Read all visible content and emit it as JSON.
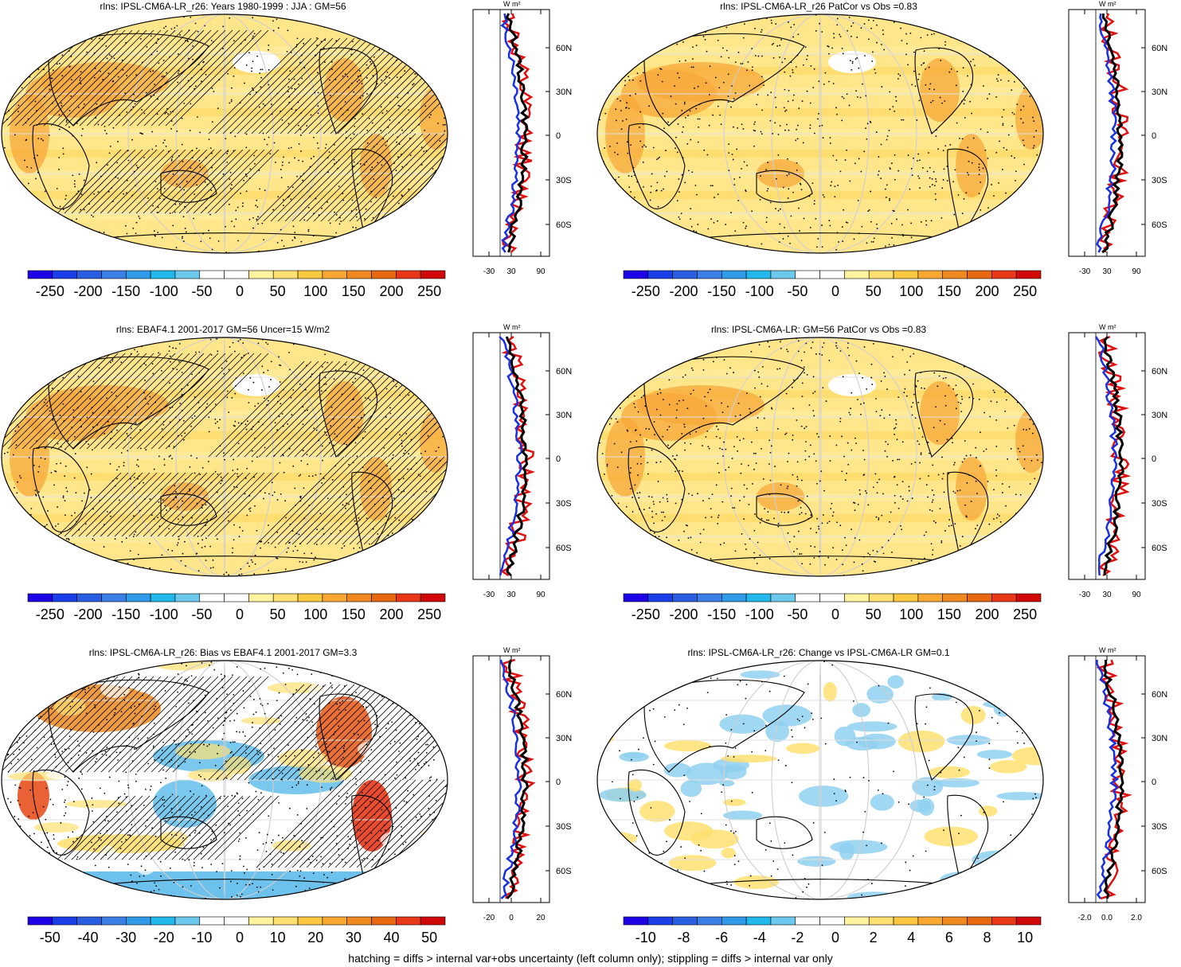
{
  "footer_note": "hatching = diffs > internal var+obs uncertainty (left column only); stippling = diffs > internal var only",
  "palette": {
    "colors": [
      "#1e00e6",
      "#1a3ee8",
      "#2a5ee0",
      "#3a7ee6",
      "#2f9be8",
      "#21b8ec",
      "#6cc8ec",
      "#ffffff",
      "#ffffff",
      "#fff3a0",
      "#ffe070",
      "#fcc840",
      "#f8a830",
      "#f08820",
      "#e86810",
      "#e83818",
      "#d00808"
    ]
  },
  "panels": [
    {
      "title": "rlns: IPSL-CM6A-LR_r26: Years 1980-1999 : JJA : GM=56",
      "theme": "warm",
      "colorbar_labels": [
        "-250",
        "-200",
        "-150",
        "-100",
        "-50",
        "0",
        "50",
        "100",
        "150",
        "200",
        "250"
      ],
      "profile_unit": "W m²",
      "profile_ticks": [
        "-30",
        "30",
        "90"
      ],
      "lat_labels": [
        "60N",
        "30N",
        "0",
        "30S",
        "60S"
      ],
      "hatched": true
    },
    {
      "title": "rlns: IPSL-CM6A-LR_r26 PatCor vs Obs =0.83",
      "theme": "warm",
      "colorbar_labels": [
        "-250",
        "-200",
        "-150",
        "-100",
        "-50",
        "0",
        "50",
        "100",
        "150",
        "200",
        "250"
      ],
      "profile_unit": "W m²",
      "profile_ticks": [
        "-30",
        "30",
        "90"
      ],
      "lat_labels": [
        "60N",
        "30N",
        "0",
        "30S",
        "60S"
      ],
      "hatched": false
    },
    {
      "title": "rlns: EBAF4.1 2001-2017 GM=56 Uncer=15 W/m2",
      "theme": "warm",
      "colorbar_labels": [
        "-250",
        "-200",
        "-150",
        "-100",
        "-50",
        "0",
        "50",
        "100",
        "150",
        "200",
        "250"
      ],
      "profile_unit": "W m²",
      "profile_ticks": [
        "-30",
        "30",
        "90"
      ],
      "lat_labels": [
        "60N",
        "30N",
        "0",
        "30S",
        "60S"
      ],
      "hatched": true
    },
    {
      "title": "rlns: IPSL-CM6A-LR: GM=56 PatCor vs Obs =0.83",
      "theme": "warm",
      "colorbar_labels": [
        "-250",
        "-200",
        "-150",
        "-100",
        "-50",
        "0",
        "50",
        "100",
        "150",
        "200",
        "250"
      ],
      "profile_unit": "W m²",
      "profile_ticks": [
        "-30",
        "30",
        "90"
      ],
      "lat_labels": [
        "60N",
        "30N",
        "0",
        "30S",
        "60S"
      ],
      "hatched": false
    },
    {
      "title": "rlns: IPSL-CM6A-LR_r26: Bias vs EBAF4.1 2001-2017 GM=3.3",
      "theme": "bias",
      "colorbar_labels": [
        "-50",
        "-40",
        "-30",
        "-20",
        "-10",
        "0",
        "10",
        "20",
        "30",
        "40",
        "50"
      ],
      "profile_unit": "W m²",
      "profile_ticks": [
        "-20",
        "0",
        "20"
      ],
      "lat_labels": [
        "60N",
        "30N",
        "0",
        "30S",
        "60S"
      ],
      "hatched": true
    },
    {
      "title": "rlns: IPSL-CM6A-LR_r26: Change vs IPSL-CM6A-LR GM=0.1",
      "theme": "change",
      "colorbar_labels": [
        "-10",
        "-8",
        "-6",
        "-4",
        "-2",
        "0",
        "2",
        "4",
        "6",
        "8",
        "10"
      ],
      "profile_unit": "W m²",
      "profile_ticks": [
        "-2.0",
        "0.0",
        "2.0"
      ],
      "lat_labels": [
        "60N",
        "30N",
        "0",
        "30S",
        "60S"
      ],
      "hatched": false
    }
  ]
}
